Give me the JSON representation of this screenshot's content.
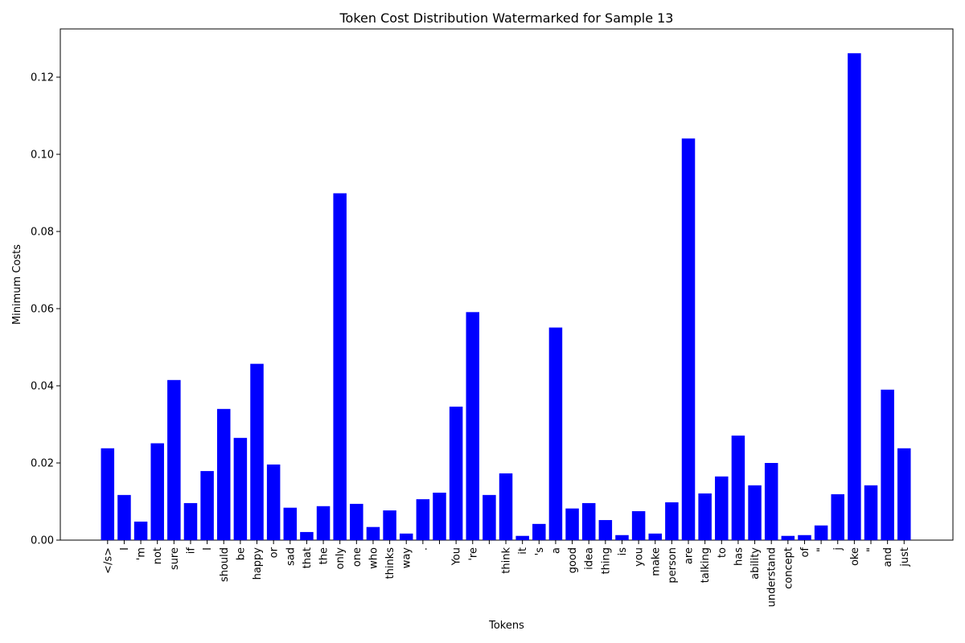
{
  "chart_data": {
    "type": "bar",
    "title": "Token Cost Distribution Watermarked for Sample 13",
    "xlabel": "Tokens",
    "ylabel": "Minimum Costs",
    "ylim": [
      0,
      0.1325
    ],
    "yticks": [
      0.0,
      0.02,
      0.04,
      0.06,
      0.08,
      0.1,
      0.12
    ],
    "ytick_labels": [
      "0.00",
      "0.02",
      "0.04",
      "0.06",
      "0.08",
      "0.10",
      "0.12"
    ],
    "grid": false,
    "bar_color": "#0000ff",
    "categories": [
      "</s>",
      "I",
      "'m",
      "not",
      "sure",
      "if",
      "I",
      "should",
      "be",
      "happy",
      "or",
      "sad",
      "that",
      "the",
      "only",
      "one",
      "who",
      "thinks",
      "way",
      ".",
      "",
      "You",
      "'re",
      "",
      "think",
      "it",
      "'s",
      "a",
      "good",
      "idea",
      "thing",
      "is",
      "you",
      "make",
      "person",
      "are",
      "talking",
      "to",
      "has",
      "ability",
      "understand",
      "concept",
      "of",
      "\"",
      "j",
      "oke",
      "\"",
      "and",
      "just"
    ],
    "values": [
      0.0238,
      0.0117,
      0.0048,
      0.0251,
      0.0415,
      0.0096,
      0.0179,
      0.034,
      0.0265,
      0.0457,
      0.0196,
      0.0084,
      0.0021,
      0.0088,
      0.0899,
      0.0094,
      0.0034,
      0.0077,
      0.0017,
      0.0106,
      0.0123,
      0.0346,
      0.0591,
      0.0117,
      0.0173,
      0.0011,
      0.0042,
      0.0551,
      0.0082,
      0.0096,
      0.0052,
      0.0013,
      0.0075,
      0.0017,
      0.0098,
      0.1041,
      0.0121,
      0.0165,
      0.0271,
      0.0142,
      0.02,
      0.0011,
      0.0013,
      0.0038,
      0.0119,
      0.1262,
      0.0142,
      0.039,
      0.0238
    ]
  }
}
